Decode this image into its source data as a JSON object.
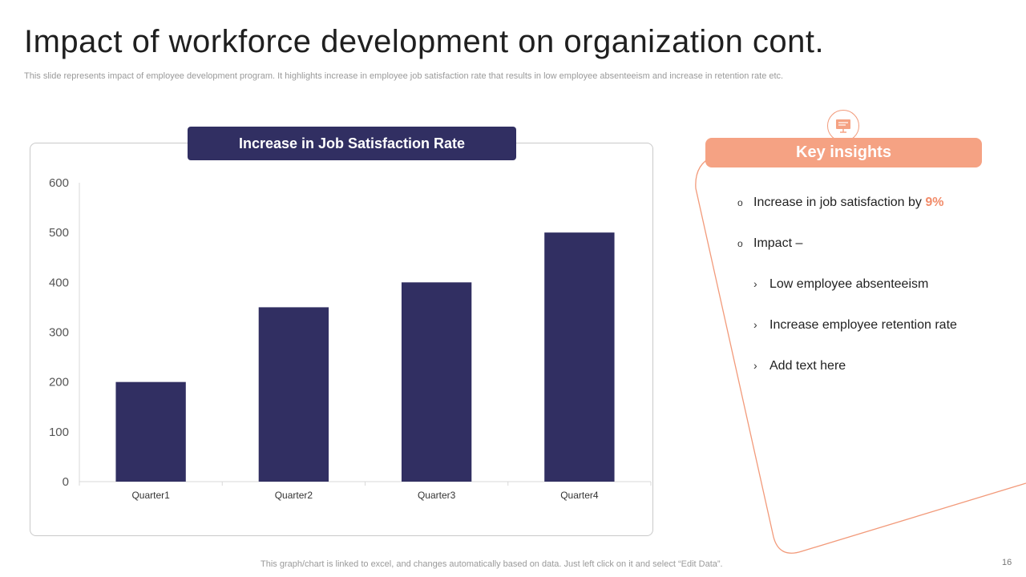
{
  "slide": {
    "title": "Impact of workforce development on organization cont.",
    "subtitle": "This slide represents impact of employee development program. It highlights increase in employee job satisfaction rate that results in low employee absenteeism and increase in retention rate etc.",
    "footer_note": "This graph/chart is linked to excel,  and changes automatically based on data. Just left click on it and select “Edit Data”.",
    "page_number": "16"
  },
  "chart_data": {
    "type": "bar",
    "title": "Increase in Job  Satisfaction Rate",
    "categories": [
      "Quarter1",
      "Quarter2",
      "Quarter3",
      "Quarter4"
    ],
    "values": [
      200,
      350,
      400,
      500
    ],
    "ylim": [
      0,
      600
    ],
    "yticks": [
      0,
      100,
      200,
      300,
      400,
      500,
      600
    ],
    "xlabel": "",
    "ylabel": "",
    "bar_color": "#312f62",
    "grid": false
  },
  "insights": {
    "header": "Key insights",
    "icon": "presentation-board-icon",
    "accent_color": "#f5a283",
    "items": [
      {
        "text": "Increase  in job satisfaction by ",
        "highlight": "9%"
      },
      {
        "text": "Impact –"
      }
    ],
    "sub_items": [
      "Low employee absenteeism",
      "Increase  employee retention rate",
      "Add text here"
    ]
  }
}
